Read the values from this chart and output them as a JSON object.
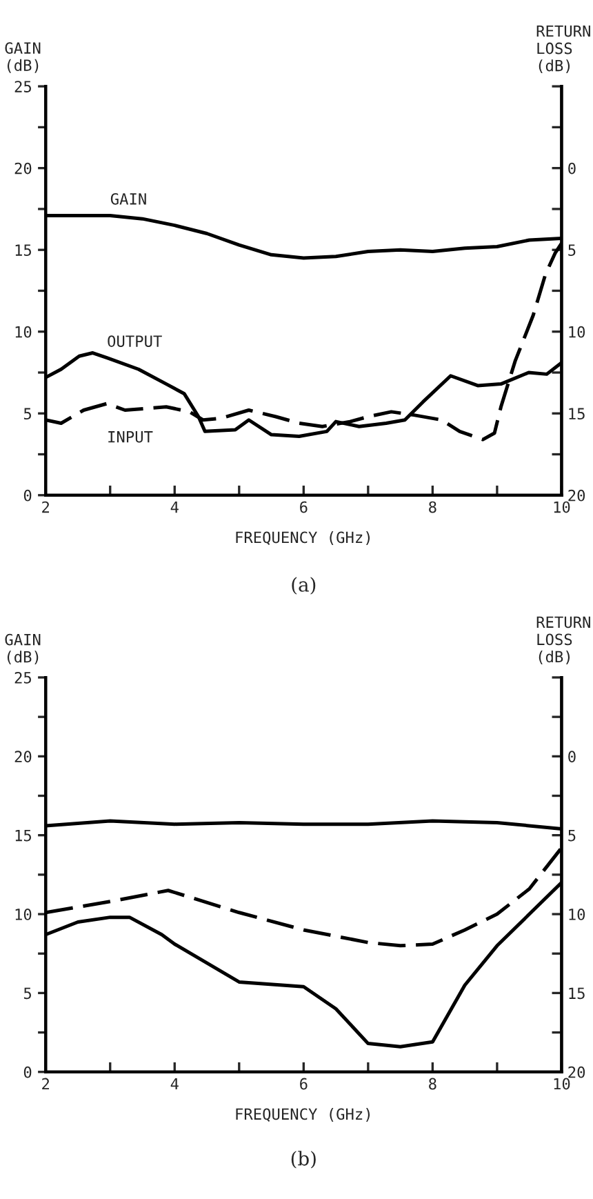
{
  "chart_data": [
    {
      "type": "line",
      "xlabel": "FREQUENCY (GHz)",
      "ylabel": "GAIN\n(dB)",
      "y2label": "RETURN\nLOSS\n(dB)",
      "annotations": [
        "(a)"
      ],
      "xlim": [
        2,
        10
      ],
      "xticks": [
        2,
        {
          "value": 3,
          "label": null
        },
        4,
        {
          "value": 5,
          "label": null
        },
        6,
        {
          "value": 7,
          "label": null
        },
        8,
        {
          "value": 9,
          "label": null
        },
        10
      ],
      "ylim": [
        0,
        25
      ],
      "yticks": [
        0,
        {
          "value": 2.5,
          "label": null
        },
        5,
        {
          "value": 7.5,
          "label": null
        },
        10,
        {
          "value": 12.5,
          "label": null
        },
        15,
        {
          "value": 17.5,
          "label": null
        },
        20,
        {
          "value": 22.5,
          "label": null
        },
        25
      ],
      "y2lim": [
        20,
        -5
      ],
      "y2ticks": [
        20,
        {
          "value": 17.5,
          "label": null
        },
        15,
        {
          "value": 12.5,
          "label": null
        },
        10,
        {
          "value": 7.5,
          "label": null
        },
        5,
        {
          "value": 2.5,
          "label": null
        },
        0,
        {
          "value": -2.5,
          "label": null
        },
        {
          "value": -5,
          "label": null
        }
      ],
      "grid": false,
      "legend": false,
      "series": [
        {
          "name": "GAIN",
          "color": "#000000",
          "line_style": "solid",
          "x": [
            2,
            3,
            3.5,
            4,
            4.5,
            5,
            5.5,
            6,
            6.5,
            7,
            7.5,
            8,
            8.5,
            9,
            9.5,
            10
          ],
          "values": [
            17.1,
            17.1,
            16.9,
            16.5,
            16.0,
            15.3,
            14.7,
            14.5,
            14.6,
            14.9,
            15.0,
            14.9,
            15.1,
            15.2,
            15.6,
            15.7
          ]
        },
        {
          "name": "OUTPUT",
          "color": "#000000",
          "line_style": "solid",
          "axis": "y2",
          "x": [
            2,
            2.24,
            2.52,
            2.73,
            2.95,
            3.44,
            3.87,
            4.15,
            4.37,
            4.47,
            4.94,
            5.15,
            5.5,
            5.93,
            6.36,
            6.5,
            6.86,
            7.28,
            7.57,
            7.85,
            8.28,
            8.7,
            9.06,
            9.49,
            9.77,
            10
          ],
          "values": [
            12.8,
            12.3,
            11.5,
            11.3,
            11.6,
            12.3,
            13.2,
            13.8,
            15.2,
            16.1,
            16.0,
            15.4,
            16.3,
            16.4,
            16.1,
            15.5,
            15.8,
            15.6,
            15.4,
            14.3,
            12.7,
            13.3,
            13.2,
            12.5,
            12.6,
            11.9
          ]
        },
        {
          "name": "INPUT",
          "color": "#000000",
          "line_style": "dashed",
          "axis": "y2",
          "x": [
            2,
            2.24,
            2.59,
            2.95,
            3.23,
            3.87,
            4.23,
            4.44,
            4.72,
            5.15,
            5.57,
            5.93,
            6.29,
            6.72,
            7.0,
            7.36,
            7.71,
            8.14,
            8.42,
            8.78,
            8.96,
            9.06,
            9.28,
            9.56,
            9.75,
            9.9,
            10
          ],
          "values": [
            15.4,
            15.6,
            14.8,
            14.4,
            14.8,
            14.6,
            14.9,
            15.4,
            15.3,
            14.8,
            15.2,
            15.6,
            15.8,
            15.5,
            15.2,
            14.9,
            15.1,
            15.4,
            16.1,
            16.6,
            16.2,
            14.6,
            11.8,
            9.0,
            6.5,
            5.2,
            4.6
          ]
        }
      ]
    },
    {
      "type": "line",
      "xlabel": "FREQUENCY (GHz)",
      "ylabel": "GAIN\n(dB)",
      "y2label": "RETURN\nLOSS\n(dB)",
      "annotations": [
        "(b)"
      ],
      "xlim": [
        2,
        10
      ],
      "xticks": [
        2,
        {
          "value": 3,
          "label": null
        },
        4,
        {
          "value": 5,
          "label": null
        },
        6,
        {
          "value": 7,
          "label": null
        },
        8,
        {
          "value": 9,
          "label": null
        },
        10
      ],
      "ylim": [
        0,
        25
      ],
      "yticks": [
        0,
        {
          "value": 2.5,
          "label": null
        },
        5,
        {
          "value": 7.5,
          "label": null
        },
        10,
        {
          "value": 12.5,
          "label": null
        },
        15,
        {
          "value": 17.5,
          "label": null
        },
        20,
        {
          "value": 22.5,
          "label": null
        },
        25
      ],
      "y2lim": [
        20,
        -5
      ],
      "y2ticks": [
        20,
        {
          "value": 17.5,
          "label": null
        },
        15,
        {
          "value": 12.5,
          "label": null
        },
        10,
        {
          "value": 7.5,
          "label": null
        },
        5,
        {
          "value": 2.5,
          "label": null
        },
        0,
        {
          "value": -2.5,
          "label": null
        },
        {
          "value": -5,
          "label": null
        }
      ],
      "grid": false,
      "legend": false,
      "series": [
        {
          "color": "#000000",
          "line_style": "solid",
          "x": [
            2,
            3,
            4,
            5,
            6,
            7,
            8,
            9,
            10
          ],
          "values": [
            15.6,
            15.9,
            15.7,
            15.8,
            15.7,
            15.7,
            15.9,
            15.8,
            15.4
          ]
        },
        {
          "color": "#000000",
          "line_style": "dashed",
          "axis": "y2",
          "x": [
            2,
            3,
            3.9,
            5,
            6,
            7,
            7.5,
            8,
            8.5,
            9,
            9.5,
            10
          ],
          "values": [
            9.9,
            9.2,
            8.5,
            9.9,
            11.0,
            11.8,
            12.0,
            11.9,
            11.0,
            10.0,
            8.4,
            5.8
          ]
        },
        {
          "color": "#000000",
          "line_style": "solid",
          "axis": "y2",
          "x": [
            2,
            2.5,
            3,
            3.3,
            3.8,
            4,
            4.5,
            5,
            6,
            6.5,
            7,
            7.5,
            8,
            8.5,
            9,
            9.5,
            10
          ],
          "values": [
            11.3,
            10.5,
            10.2,
            10.2,
            11.3,
            11.9,
            13.1,
            14.3,
            14.6,
            16.0,
            18.2,
            18.4,
            18.1,
            14.5,
            12.0,
            10.0,
            8.0
          ]
        }
      ]
    }
  ]
}
